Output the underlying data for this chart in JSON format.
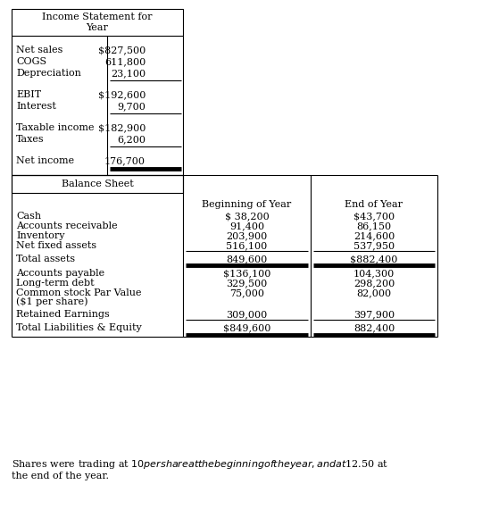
{
  "title_is": "Income Statement for\nYear",
  "bs_title": "Balance Sheet",
  "footer_line1": "Shares were trading at $10 per share at the beginning of the year, and at $12.50 at",
  "footer_line2": "the end of the year.",
  "is_rows": [
    {
      "label": "Net sales",
      "value": "$827,500"
    },
    {
      "label": "COGS",
      "value": "611,800"
    },
    {
      "label": "Depreciation",
      "value": "23,100",
      "thin_below": true
    },
    {
      "label": "EBIT",
      "value": "$192,600"
    },
    {
      "label": "Interest",
      "value": "9,700",
      "thin_below": true
    },
    {
      "label": "Taxable income",
      "value": "$182,900"
    },
    {
      "label": "Taxes",
      "value": "6,200",
      "thin_below": true
    },
    {
      "label": "Net income",
      "value": "176,700",
      "bold_below": true
    }
  ],
  "bs_header_col1": "Beginning of Year",
  "bs_header_col2": "End of Year",
  "bs_rows": [
    {
      "label": "Cash",
      "v1": "$ 38,200",
      "v2": "$43,700",
      "gap_above": false
    },
    {
      "label": "Accounts receivable",
      "v1": "91,400",
      "v2": "86,150",
      "gap_above": false
    },
    {
      "label": "Inventory",
      "v1": "203,900",
      "v2": "214,600",
      "gap_above": false
    },
    {
      "label": "Net fixed assets",
      "v1": "516,100",
      "v2": "537,950",
      "thin_below": true,
      "gap_above": false
    },
    {
      "label": "Total assets",
      "v1": "849,600",
      "v2": "$882,400",
      "bold_below": true,
      "gap_above": true
    },
    {
      "label": "Accounts payable",
      "v1": "$136,100",
      "v2": "104,300",
      "gap_above": true
    },
    {
      "label": "Long-term debt",
      "v1": "329,500",
      "v2": "298,200",
      "gap_above": false
    },
    {
      "label": "Common stock Par Value",
      "v1": "75,000",
      "v2": "82,000",
      "gap_above": false
    },
    {
      "label": "($1 per share)",
      "v1": "",
      "v2": "",
      "gap_above": false
    },
    {
      "label": "Retained Earnings",
      "v1": "309,000",
      "v2": "397,900",
      "thin_below": true,
      "gap_above": false
    },
    {
      "label": "Total Liabilities & Equity",
      "v1": "$849,600",
      "v2": "882,400",
      "bold_below": true,
      "gap_above": true
    }
  ],
  "bg_color": "#ffffff",
  "text_color": "#000000"
}
